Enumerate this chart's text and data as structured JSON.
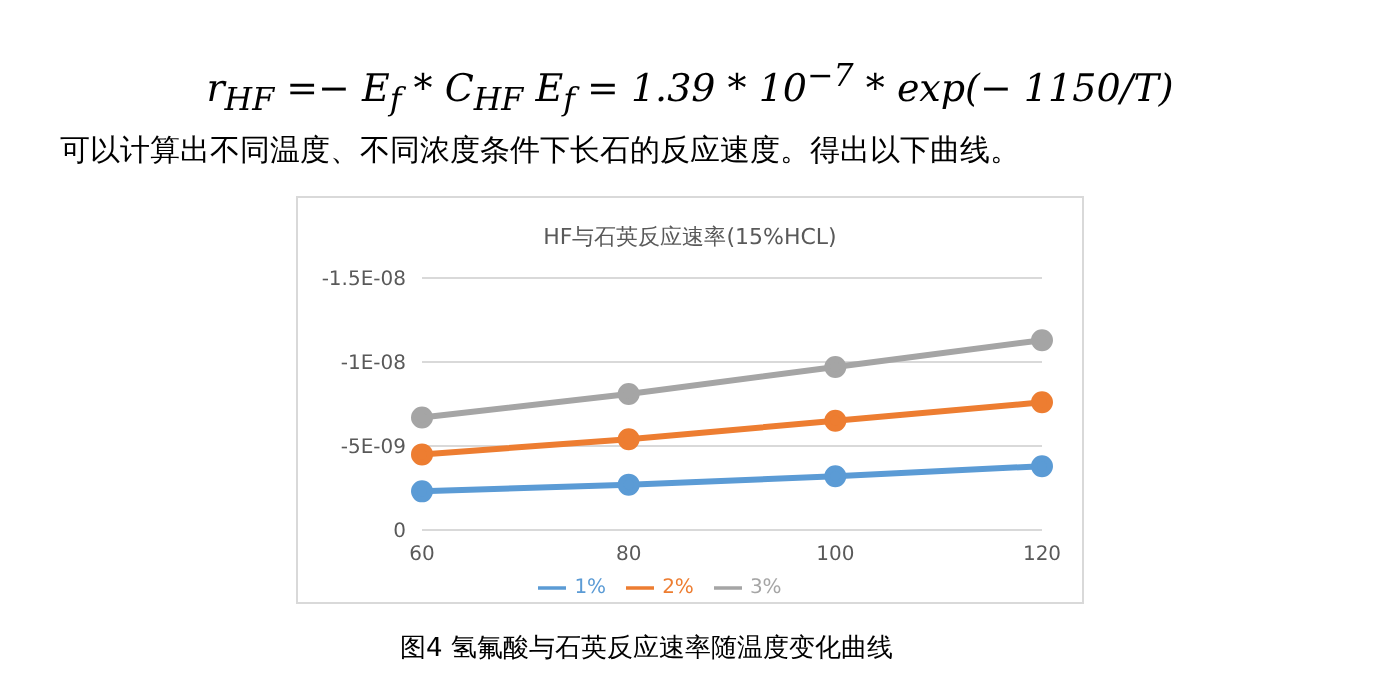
{
  "chart_data": {
    "type": "line",
    "title": "HF与石英反应速率(15%HCL)",
    "categories": [
      "60",
      "80",
      "100",
      "120"
    ],
    "series": [
      {
        "name": "1%",
        "color": "#5b9bd5",
        "values": [
          -2.3e-09,
          -2.7e-09,
          -3.2e-09,
          -3.8e-09
        ]
      },
      {
        "name": "2%",
        "color": "#ed7d31",
        "values": [
          -4.5e-09,
          -5.4e-09,
          -6.5e-09,
          -7.6e-09
        ]
      },
      {
        "name": "3%",
        "color": "#a5a5a5",
        "values": [
          -6.7e-09,
          -8.1e-09,
          -9.7e-09,
          -1.13e-08
        ]
      }
    ],
    "ylim": [
      0,
      -1.5e-08
    ],
    "yticks": [
      {
        "value": 0,
        "label": "0"
      },
      {
        "value": -5e-09,
        "label": "-5E-09"
      },
      {
        "value": -1e-08,
        "label": "-1E-08"
      },
      {
        "value": -1.5e-08,
        "label": "-1.5E-08"
      }
    ],
    "grid": "y",
    "legend": "bottom",
    "marker": "circle",
    "line_style": "solid",
    "annotations": [
      "r$_{HF}$ =− E$_{f}$ * C$_{HF}$  E$_{f}$ = 1.39 * 10$^{−7}$ * exp(− 1150/T)",
      "可以计算出不同温度、不同浓度条件下长石的反应速度。得出以下曲线。",
      "图4 氢氟酸与石英反应速率随温度变化曲线"
    ]
  }
}
